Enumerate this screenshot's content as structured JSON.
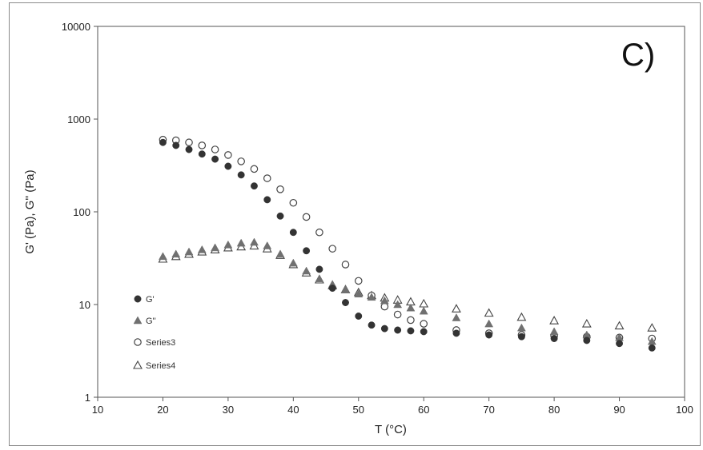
{
  "chart_data": {
    "type": "scatter",
    "panel_label": "C)",
    "xlabel": "T (°C)",
    "ylabel": "G' (Pa), G'' (Pa)",
    "x_scale": "linear",
    "y_scale": "log",
    "xlim": [
      10,
      100
    ],
    "ylim": [
      1,
      10000
    ],
    "x_ticks": [
      "10",
      "20",
      "30",
      "40",
      "50",
      "60",
      "70",
      "80",
      "90",
      "100"
    ],
    "y_ticks": [
      "1",
      "10",
      "100",
      "1000",
      "10000"
    ],
    "grid": false,
    "legend_position": "left",
    "colors": {
      "filled": "#333333",
      "open": "#444444",
      "triangle_fill": "#707070"
    },
    "series": [
      {
        "name": "G'",
        "marker": "filled-circle",
        "x": [
          20,
          22,
          24,
          26,
          28,
          30,
          32,
          34,
          36,
          38,
          40,
          42,
          44,
          46,
          48,
          50,
          52,
          54,
          56,
          58,
          60,
          65,
          70,
          75,
          80,
          85,
          90,
          95
        ],
        "y": [
          560,
          520,
          470,
          420,
          370,
          310,
          250,
          190,
          135,
          90,
          60,
          38,
          24,
          15,
          10.5,
          7.5,
          6.0,
          5.5,
          5.3,
          5.2,
          5.1,
          4.9,
          4.7,
          4.5,
          4.3,
          4.1,
          3.8,
          3.4
        ]
      },
      {
        "name": "G''",
        "marker": "filled-triangle",
        "x": [
          20,
          22,
          24,
          26,
          28,
          30,
          32,
          34,
          36,
          38,
          40,
          42,
          44,
          46,
          48,
          50,
          52,
          54,
          56,
          58,
          60,
          65,
          70,
          75,
          80,
          85,
          90,
          95
        ],
        "y": [
          33,
          35,
          37,
          39,
          41,
          44,
          46,
          47,
          43,
          35,
          28,
          23,
          19,
          16.5,
          14.5,
          13,
          12,
          11,
          10,
          9.2,
          8.5,
          7.2,
          6.2,
          5.6,
          5.1,
          4.7,
          4.4,
          4.0
        ]
      },
      {
        "name": "Series3",
        "marker": "open-circle",
        "x": [
          20,
          22,
          24,
          26,
          28,
          30,
          32,
          34,
          36,
          38,
          40,
          42,
          44,
          46,
          48,
          50,
          52,
          54,
          56,
          58,
          60,
          65,
          70,
          75,
          80,
          85,
          90,
          95
        ],
        "y": [
          600,
          590,
          560,
          520,
          470,
          410,
          350,
          290,
          230,
          175,
          125,
          88,
          60,
          40,
          27,
          18,
          12.5,
          9.5,
          7.8,
          6.8,
          6.2,
          5.3,
          4.9,
          4.7,
          4.6,
          4.5,
          4.4,
          4.3
        ]
      },
      {
        "name": "Series4",
        "marker": "open-triangle",
        "x": [
          20,
          22,
          24,
          26,
          28,
          30,
          32,
          34,
          36,
          38,
          40,
          42,
          44,
          46,
          48,
          50,
          52,
          54,
          56,
          58,
          60,
          65,
          70,
          75,
          80,
          85,
          90,
          95
        ],
        "y": [
          31,
          33,
          35,
          37,
          39,
          41,
          42,
          43,
          40,
          34,
          27,
          22,
          18.5,
          16,
          14.5,
          13.5,
          12.5,
          11.8,
          11.2,
          10.7,
          10.2,
          9.0,
          8.1,
          7.3,
          6.7,
          6.2,
          5.9,
          5.6
        ]
      }
    ]
  }
}
